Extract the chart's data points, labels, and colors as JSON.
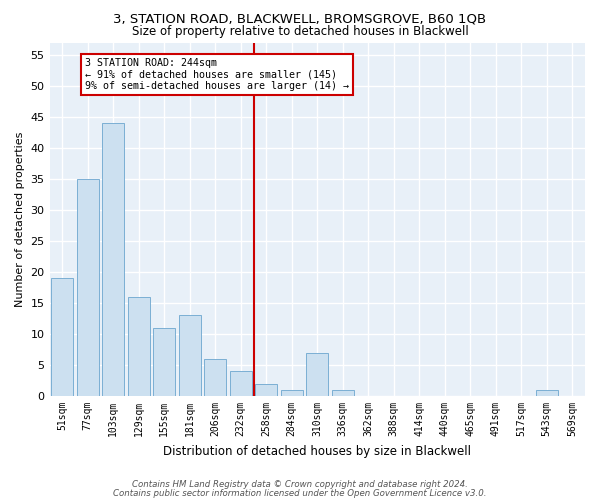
{
  "title": "3, STATION ROAD, BLACKWELL, BROMSGROVE, B60 1QB",
  "subtitle": "Size of property relative to detached houses in Blackwell",
  "xlabel": "Distribution of detached houses by size in Blackwell",
  "ylabel": "Number of detached properties",
  "categories": [
    "51sqm",
    "77sqm",
    "103sqm",
    "129sqm",
    "155sqm",
    "181sqm",
    "206sqm",
    "232sqm",
    "258sqm",
    "284sqm",
    "310sqm",
    "336sqm",
    "362sqm",
    "388sqm",
    "414sqm",
    "440sqm",
    "465sqm",
    "491sqm",
    "517sqm",
    "543sqm",
    "569sqm"
  ],
  "values": [
    19,
    35,
    44,
    16,
    11,
    13,
    6,
    4,
    2,
    1,
    7,
    1,
    0,
    0,
    0,
    0,
    0,
    0,
    0,
    1,
    0
  ],
  "bar_color": "#cce0f0",
  "bar_edge_color": "#7bafd4",
  "background_color": "#e8f0f8",
  "grid_color": "#ffffff",
  "vline_color": "#cc0000",
  "vline_pos": 7.5,
  "annotation_text": "3 STATION ROAD: 244sqm\n← 91% of detached houses are smaller (145)\n9% of semi-detached houses are larger (14) →",
  "annotation_box_edge": "#cc0000",
  "ylim": [
    0,
    57
  ],
  "yticks": [
    0,
    5,
    10,
    15,
    20,
    25,
    30,
    35,
    40,
    45,
    50,
    55
  ],
  "title_fontsize": 9.5,
  "subtitle_fontsize": 8.5,
  "xlabel_fontsize": 8.5,
  "ylabel_fontsize": 8,
  "tick_fontsize": 7,
  "footer1": "Contains HM Land Registry data © Crown copyright and database right 2024.",
  "footer2": "Contains public sector information licensed under the Open Government Licence v3.0.",
  "footer_fontsize": 6.2,
  "fig_bg": "#ffffff"
}
